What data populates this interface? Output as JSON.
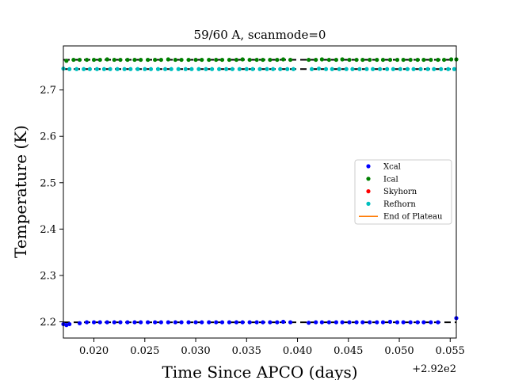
{
  "chart_data": {
    "type": "scatter",
    "title": "59/60 A, scanmode=0",
    "xlabel": "Time Since APCO (days)",
    "ylabel": "Temperature (K)",
    "x_offset_label": "+2.92e2",
    "xlim": [
      0.017,
      0.0556
    ],
    "ylim": [
      2.165,
      2.795
    ],
    "xticks": [
      0.02,
      0.025,
      0.03,
      0.035,
      0.04,
      0.045,
      0.05,
      0.055
    ],
    "xtick_labels": [
      "0.020",
      "0.025",
      "0.030",
      "0.035",
      "0.040",
      "0.045",
      "0.050",
      "0.055"
    ],
    "yticks": [
      2.2,
      2.3,
      2.4,
      2.5,
      2.6,
      2.7
    ],
    "ytick_labels": [
      "2.2",
      "2.3",
      "2.4",
      "2.5",
      "2.6",
      "2.7"
    ],
    "legend_position": "center-right",
    "dashed_gaps": [
      [
        0.037,
        0.041
      ]
    ],
    "series": [
      {
        "name": "Xcal",
        "marker": "dot",
        "color": "#0000ff",
        "y_values": [
          2.195,
          2.193,
          2.195,
          2.197,
          2.199,
          2.199,
          2.199,
          2.199,
          2.199,
          2.199,
          2.199,
          2.199,
          2.199,
          2.199,
          2.199,
          2.199,
          2.199,
          2.199,
          2.199,
          2.199,
          2.199,
          2.199,
          2.199,
          2.199,
          2.199,
          2.199,
          2.199,
          2.199,
          2.199,
          2.199,
          2.199,
          2.199,
          2.199,
          2.2,
          2.199,
          2.198,
          2.199,
          2.199,
          2.199,
          2.199,
          2.199,
          2.199,
          2.199,
          2.199,
          2.199,
          2.199,
          2.199,
          2.2,
          2.199,
          2.199,
          2.199,
          2.199,
          2.199,
          2.199,
          2.199,
          2.208
        ],
        "x_values": [
          0.017,
          0.0173,
          0.0176,
          0.0186,
          0.0193,
          0.02,
          0.0206,
          0.0213,
          0.022,
          0.0226,
          0.0233,
          0.024,
          0.0246,
          0.0253,
          0.026,
          0.0266,
          0.0273,
          0.028,
          0.0286,
          0.0293,
          0.03,
          0.0306,
          0.0313,
          0.032,
          0.0326,
          0.0333,
          0.034,
          0.0346,
          0.0353,
          0.036,
          0.0366,
          0.0373,
          0.038,
          0.0386,
          0.0393,
          0.0411,
          0.0418,
          0.0424,
          0.0431,
          0.0438,
          0.0444,
          0.0451,
          0.0458,
          0.0464,
          0.0471,
          0.0478,
          0.0484,
          0.0491,
          0.0498,
          0.0504,
          0.0511,
          0.0518,
          0.0524,
          0.0531,
          0.0538,
          0.0556
        ]
      },
      {
        "name": "Ical",
        "marker": "dot",
        "color": "#008000",
        "x_values": [
          0.0173,
          0.018,
          0.0186,
          0.0193,
          0.02,
          0.0206,
          0.0213,
          0.022,
          0.0226,
          0.0233,
          0.024,
          0.0246,
          0.0253,
          0.026,
          0.0266,
          0.0273,
          0.028,
          0.0286,
          0.0293,
          0.03,
          0.0306,
          0.0313,
          0.032,
          0.0326,
          0.0333,
          0.034,
          0.0346,
          0.0353,
          0.036,
          0.0366,
          0.0373,
          0.038,
          0.0386,
          0.0393,
          0.0411,
          0.0418,
          0.0424,
          0.0431,
          0.0438,
          0.0444,
          0.0451,
          0.0458,
          0.0464,
          0.0471,
          0.0478,
          0.0484,
          0.0491,
          0.0498,
          0.0504,
          0.0511,
          0.0518,
          0.0524,
          0.0531,
          0.0538,
          0.0544,
          0.0551,
          0.0556
        ],
        "y_values": [
          2.763,
          2.765,
          2.765,
          2.765,
          2.765,
          2.765,
          2.766,
          2.765,
          2.765,
          2.765,
          2.765,
          2.765,
          2.765,
          2.765,
          2.765,
          2.766,
          2.765,
          2.765,
          2.765,
          2.765,
          2.765,
          2.765,
          2.765,
          2.765,
          2.765,
          2.765,
          2.766,
          2.765,
          2.765,
          2.765,
          2.765,
          2.765,
          2.766,
          2.765,
          2.765,
          2.765,
          2.766,
          2.765,
          2.765,
          2.766,
          2.765,
          2.765,
          2.765,
          2.765,
          2.765,
          2.765,
          2.765,
          2.765,
          2.765,
          2.765,
          2.765,
          2.765,
          2.765,
          2.765,
          2.765,
          2.766,
          2.766
        ]
      },
      {
        "name": "Skyhorn",
        "marker": "dot",
        "color": "#ff0000",
        "x_values": [],
        "y_values": []
      },
      {
        "name": "Refhorn",
        "marker": "dot",
        "color": "#00bfbf",
        "x_values": [
          0.017,
          0.0176,
          0.0183,
          0.019,
          0.0196,
          0.0203,
          0.021,
          0.0216,
          0.0223,
          0.023,
          0.0236,
          0.0243,
          0.025,
          0.0256,
          0.0263,
          0.027,
          0.0276,
          0.0283,
          0.029,
          0.0296,
          0.0303,
          0.031,
          0.0316,
          0.0323,
          0.033,
          0.0336,
          0.0343,
          0.035,
          0.0356,
          0.0363,
          0.037,
          0.0376,
          0.0383,
          0.039,
          0.0396,
          0.0414,
          0.0421,
          0.0428,
          0.0434,
          0.0441,
          0.0448,
          0.0454,
          0.0461,
          0.0468,
          0.0474,
          0.0481,
          0.0488,
          0.0494,
          0.0501,
          0.0508,
          0.0514,
          0.0521,
          0.0528,
          0.0534,
          0.0541,
          0.0548,
          0.0554
        ],
        "y_values": [
          2.746,
          2.745,
          2.745,
          2.745,
          2.745,
          2.745,
          2.745,
          2.745,
          2.745,
          2.745,
          2.745,
          2.745,
          2.745,
          2.745,
          2.745,
          2.745,
          2.745,
          2.745,
          2.745,
          2.745,
          2.745,
          2.745,
          2.745,
          2.745,
          2.745,
          2.745,
          2.745,
          2.745,
          2.745,
          2.745,
          2.745,
          2.745,
          2.745,
          2.745,
          2.745,
          2.745,
          2.746,
          2.745,
          2.745,
          2.745,
          2.745,
          2.745,
          2.745,
          2.745,
          2.745,
          2.745,
          2.745,
          2.745,
          2.745,
          2.745,
          2.745,
          2.745,
          2.745,
          2.745,
          2.745,
          2.745,
          2.745
        ]
      },
      {
        "name": "End of Plateau",
        "marker": "line",
        "color": "#ff7f0e",
        "x_values": [],
        "y_values": []
      }
    ]
  }
}
